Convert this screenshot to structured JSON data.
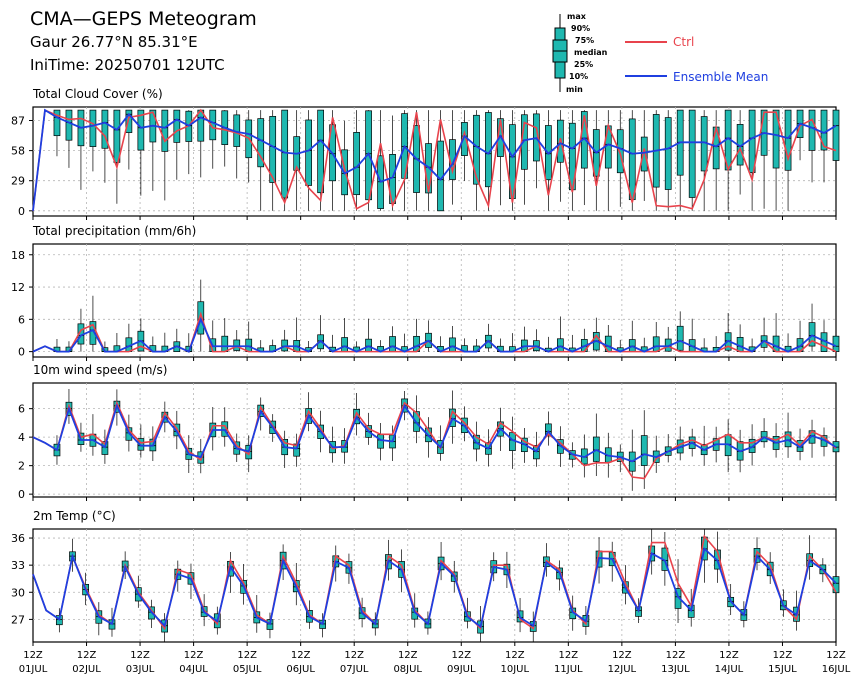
{
  "header": {
    "title": "CMA—GEPS Meteogram",
    "location": "Gaur 26.77°N 85.31°E",
    "init": "IniTime: 20250701 12UTC"
  },
  "legend": {
    "box_labels": [
      "max",
      "90%",
      "75%",
      "median",
      "25%",
      "10%",
      "min"
    ],
    "ctrl": "Ctrl",
    "mean": "Ensemble Mean"
  },
  "colors": {
    "ctrl": "#e8434c",
    "mean": "#1f3fe0",
    "box": "#1fb8b0"
  },
  "x_axis": {
    "hour_label": "12Z",
    "dates": [
      "01JUL",
      "02JUL",
      "03JUL",
      "04JUL",
      "05JUL",
      "06JUL",
      "07JUL",
      "08JUL",
      "09JUL",
      "10JUL",
      "11JUL",
      "12JUL",
      "13JUL",
      "14JUL",
      "15JUL",
      "16JUL"
    ]
  },
  "chart_data": [
    {
      "type": "box",
      "title": "Total Cloud Cover (%)",
      "ylim": [
        -5,
        100
      ],
      "yticks": [
        0,
        29,
        58,
        87
      ],
      "grid": true,
      "ctrl": [
        0,
        97,
        92,
        88,
        89,
        84,
        72,
        42,
        90,
        92,
        95,
        67,
        77,
        82,
        97,
        80,
        78,
        75,
        70,
        52,
        32,
        8,
        42,
        22,
        10,
        90,
        40,
        2,
        8,
        65,
        5,
        30,
        95,
        18,
        88,
        38,
        75,
        32,
        5,
        88,
        8,
        85,
        80,
        15,
        70,
        18,
        92,
        24,
        82,
        55,
        8,
        60,
        5,
        4,
        5,
        2,
        30,
        80,
        40,
        60,
        30,
        95,
        95,
        50,
        82,
        88,
        62,
        58
      ],
      "mean": [
        0,
        97,
        90,
        85,
        80,
        82,
        85,
        78,
        93,
        80,
        82,
        80,
        88,
        82,
        90,
        85,
        80,
        76,
        74,
        68,
        62,
        56,
        55,
        58,
        68,
        55,
        36,
        42,
        55,
        28,
        32,
        62,
        50,
        42,
        30,
        45,
        72,
        62,
        55,
        72,
        52,
        68,
        70,
        55,
        65,
        60,
        70,
        56,
        64,
        60,
        55,
        56,
        58,
        60,
        66,
        66,
        66,
        62,
        70,
        62,
        70,
        75,
        73,
        70,
        84,
        80,
        75,
        82
      ]
    },
    {
      "type": "box",
      "title": "Total precipitation (mm/6h)",
      "ylim": [
        -1,
        20
      ],
      "yticks": [
        0,
        6,
        12,
        18
      ],
      "grid": true,
      "ctrl": [
        0,
        1,
        0,
        0,
        4,
        5,
        0,
        0,
        0,
        1,
        0,
        0,
        1,
        0,
        7,
        0,
        0,
        1,
        0,
        0,
        0,
        1,
        0,
        0,
        2,
        0,
        0,
        0,
        0,
        0,
        0,
        0,
        0,
        2,
        0,
        0,
        0,
        0,
        2,
        0,
        0,
        0,
        1,
        0,
        0,
        0,
        0,
        3,
        0,
        0,
        0,
        0,
        0,
        1,
        0,
        0,
        0,
        0,
        1,
        0,
        0,
        2,
        0,
        0,
        0,
        2,
        1,
        0
      ],
      "mean": [
        0,
        1,
        0,
        0,
        3,
        4,
        0,
        0,
        1,
        2,
        0,
        0,
        1,
        0,
        6,
        1,
        1,
        1,
        1,
        0,
        0,
        1,
        1,
        0,
        2,
        0,
        1,
        0,
        1,
        0,
        1,
        0,
        1,
        2,
        0,
        1,
        0,
        0,
        2,
        0,
        0,
        1,
        1,
        0,
        1,
        0,
        1,
        2,
        1,
        0,
        1,
        0,
        1,
        1,
        2,
        1,
        0,
        0,
        2,
        1,
        0,
        2,
        1,
        0,
        1,
        3,
        2,
        1
      ]
    },
    {
      "type": "box",
      "title": "10m wind speed (m/s)",
      "ylim": [
        -0.2,
        7.8
      ],
      "yticks": [
        0,
        2,
        4,
        6
      ],
      "grid": true,
      "ctrl": [
        4.0,
        3.6,
        3.1,
        6.2,
        4.0,
        4.2,
        3.5,
        6.4,
        4.5,
        3.6,
        3.7,
        5.7,
        4.6,
        3.0,
        2.4,
        4.8,
        4.8,
        3.4,
        2.8,
        6.1,
        4.8,
        3.6,
        3.4,
        5.8,
        4.6,
        3.2,
        3.4,
        5.7,
        4.6,
        4.2,
        4.2,
        6.4,
        5.7,
        4.5,
        3.2,
        5.8,
        5.0,
        4.0,
        3.5,
        5.0,
        4.4,
        3.7,
        3.3,
        4.2,
        3.6,
        2.8,
        2.0,
        2.2,
        2.2,
        2.5,
        1.2,
        1.1,
        2.5,
        3.0,
        3.5,
        3.8,
        3.4,
        3.8,
        4.2,
        3.6,
        3.6,
        4.0,
        3.8,
        4.2,
        3.4,
        4.4,
        4.0,
        3.2
      ],
      "mean": [
        4.0,
        3.6,
        3.1,
        6.0,
        3.8,
        3.8,
        3.3,
        6.2,
        4.3,
        3.4,
        3.4,
        5.4,
        4.4,
        2.8,
        2.6,
        4.5,
        4.5,
        3.2,
        3.0,
        5.8,
        4.7,
        3.3,
        3.2,
        5.5,
        4.4,
        3.3,
        3.3,
        5.4,
        4.4,
        3.8,
        3.7,
        6.2,
        5.0,
        4.1,
        3.3,
        5.3,
        4.8,
        3.6,
        3.2,
        4.6,
        3.8,
        3.5,
        3.0,
        4.4,
        3.4,
        2.8,
        2.6,
        3.1,
        2.7,
        2.6,
        2.3,
        2.8,
        2.6,
        3.0,
        3.3,
        3.6,
        3.1,
        3.5,
        3.5,
        3.0,
        3.3,
        4.0,
        3.6,
        3.8,
        3.3,
        4.1,
        3.8,
        3.3
      ]
    },
    {
      "type": "box",
      "title": "2m Temp (°C)",
      "ylim": [
        24.5,
        37
      ],
      "yticks": [
        27,
        30,
        33,
        36
      ],
      "grid": true,
      "ctrl": [
        32,
        28,
        27,
        34,
        30.5,
        27.5,
        26.5,
        33,
        30,
        28,
        26,
        32.5,
        32,
        28,
        26.5,
        33.5,
        31,
        27.5,
        26.5,
        34,
        31,
        27.5,
        26.5,
        34,
        33,
        28,
        26.5,
        34,
        33,
        28,
        26.5,
        33.5,
        32,
        27.5,
        26,
        33,
        33,
        27,
        26,
        33.5,
        32.5,
        28,
        26.5,
        34.5,
        34.5,
        31,
        28,
        35.5,
        35.5,
        31,
        28.5,
        36.2,
        34.5,
        29,
        27.5,
        34.5,
        33,
        28.5,
        27,
        34,
        32.5,
        30
      ],
      "mean": [
        32,
        28,
        27,
        34,
        30.3,
        27.3,
        26.5,
        32.8,
        29.8,
        27.8,
        26.3,
        32,
        31.5,
        27.8,
        26.8,
        32.8,
        30.7,
        27.2,
        26.5,
        33.5,
        30.6,
        27.3,
        26.5,
        33.4,
        32.7,
        27.7,
        26.5,
        33.5,
        32.5,
        27.8,
        26.5,
        33.2,
        31.8,
        27.3,
        26.2,
        32.8,
        32.5,
        27.2,
        26.3,
        33.3,
        32.2,
        27.8,
        26.8,
        33.8,
        33.7,
        30.5,
        28,
        34.3,
        33.5,
        29.5,
        28,
        34.8,
        33.5,
        29,
        27.5,
        34,
        32.5,
        28.5,
        27.5,
        33.5,
        32.5,
        31
      ]
    }
  ]
}
